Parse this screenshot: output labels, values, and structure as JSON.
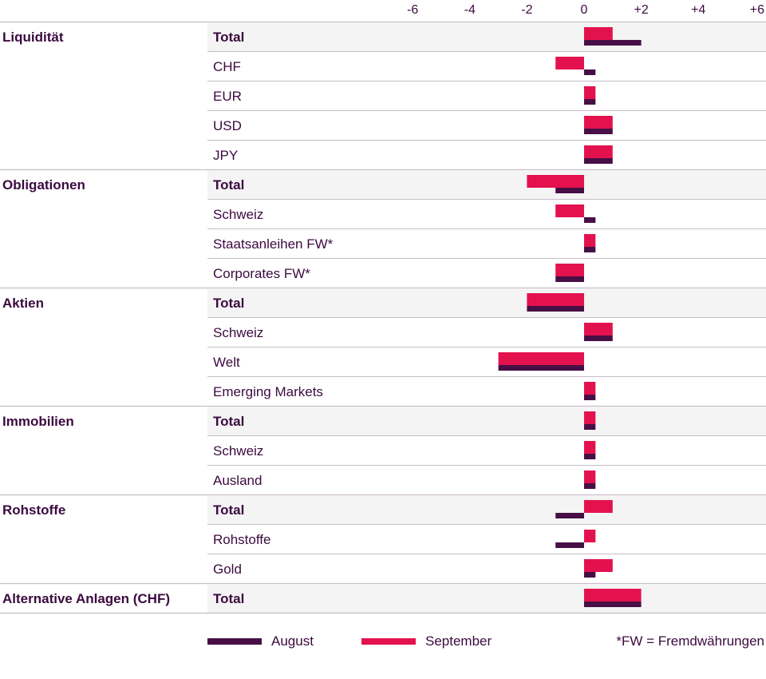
{
  "chart_data": {
    "type": "bar",
    "orientation": "horizontal",
    "xlim": [
      -6,
      6
    ],
    "ticks": [
      -6,
      -4,
      -2,
      0,
      2,
      4,
      6
    ],
    "tick_labels": [
      "-6",
      "-4",
      "-2",
      "0",
      "+2",
      "+4",
      "+6"
    ],
    "series": [
      {
        "name": "August",
        "color": "#470f45"
      },
      {
        "name": "September",
        "color": "#e3124e"
      }
    ],
    "groups": [
      {
        "name": "Liquidität",
        "rows": [
          {
            "label": "Total",
            "bold": true,
            "august": 2,
            "september": 1
          },
          {
            "label": "CHF",
            "bold": false,
            "august": 0.4,
            "september": -1
          },
          {
            "label": "EUR",
            "bold": false,
            "august": 0.4,
            "september": 0.4
          },
          {
            "label": "USD",
            "bold": false,
            "august": 1,
            "september": 1
          },
          {
            "label": "JPY",
            "bold": false,
            "august": 1,
            "september": 1
          }
        ]
      },
      {
        "name": "Obligationen",
        "rows": [
          {
            "label": "Total",
            "bold": true,
            "august": -1,
            "september": -2
          },
          {
            "label": "Schweiz",
            "bold": false,
            "august": 0.4,
            "september": -1
          },
          {
            "label": "Staatsanleihen FW*",
            "bold": false,
            "august": 0.4,
            "september": 0.4
          },
          {
            "label": "Corporates FW*",
            "bold": false,
            "august": -1,
            "september": -1
          }
        ]
      },
      {
        "name": "Aktien",
        "rows": [
          {
            "label": "Total",
            "bold": true,
            "august": -2,
            "september": -2
          },
          {
            "label": "Schweiz",
            "bold": false,
            "august": 1,
            "september": 1
          },
          {
            "label": "Welt",
            "bold": false,
            "august": -3,
            "september": -3
          },
          {
            "label": "Emerging Markets",
            "bold": false,
            "august": 0.4,
            "september": 0.4
          }
        ]
      },
      {
        "name": "Immobilien",
        "rows": [
          {
            "label": "Total",
            "bold": true,
            "august": 0.4,
            "september": 0.4
          },
          {
            "label": "Schweiz",
            "bold": false,
            "august": 0.4,
            "september": 0.4
          },
          {
            "label": "Ausland",
            "bold": false,
            "august": 0.4,
            "september": 0.4
          }
        ]
      },
      {
        "name": "Rohstoffe",
        "rows": [
          {
            "label": "Total",
            "bold": true,
            "august": -1,
            "september": 1
          },
          {
            "label": "Rohstoffe",
            "bold": false,
            "august": -1,
            "september": 0.4
          },
          {
            "label": "Gold",
            "bold": false,
            "august": 0.4,
            "september": 1
          }
        ]
      },
      {
        "name": "Alternative Anlagen (CHF)",
        "rows": [
          {
            "label": "Total",
            "bold": true,
            "august": 2,
            "september": 2
          }
        ]
      }
    ],
    "footnote": "*FW = Fremdwährungen"
  }
}
